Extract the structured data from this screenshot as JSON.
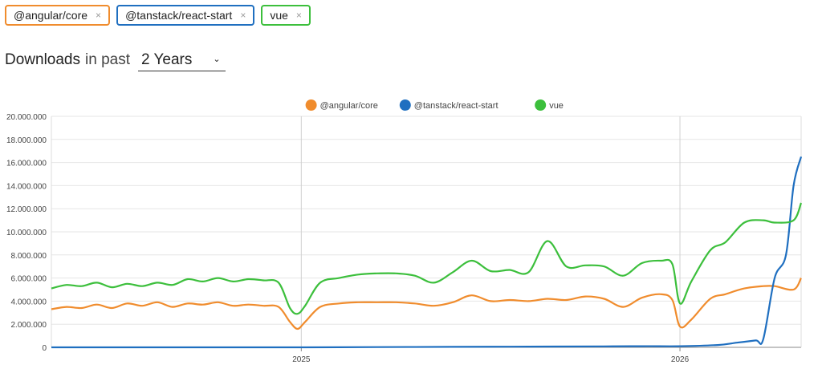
{
  "chips": [
    {
      "label": "@angular/core",
      "color": "#f08c2d"
    },
    {
      "label": "@tanstack/react-start",
      "color": "#1f6fc0"
    },
    {
      "label": "vue",
      "color": "#3cbf3c"
    }
  ],
  "remove_glyph": "×",
  "header": {
    "title": "Downloads",
    "in_text": "in past",
    "period_value": "2 Years",
    "period_chevron": "⌄"
  },
  "chart_data": {
    "type": "line",
    "xlim": [
      2024.34,
      2026.32
    ],
    "ylim": [
      0,
      20000000
    ],
    "y_ticks": [
      0,
      2000000,
      4000000,
      6000000,
      8000000,
      10000000,
      12000000,
      14000000,
      16000000,
      18000000,
      20000000
    ],
    "y_tick_labels": [
      "0",
      "2.000.000",
      "4.000.000",
      "6.000.000",
      "8.000.000",
      "10.000.000",
      "12.000.000",
      "14.000.000",
      "16.000.000",
      "18.000.000",
      "20.000.000"
    ],
    "x_ticks": [
      2025,
      2026
    ],
    "x_tick_labels": [
      "2025",
      "2026"
    ],
    "grid": true,
    "legend_position": "top-center",
    "series": [
      {
        "name": "@angular/core",
        "color": "#f08c2d",
        "x": [
          2024.34,
          2024.38,
          2024.42,
          2024.46,
          2024.5,
          2024.54,
          2024.58,
          2024.62,
          2024.66,
          2024.7,
          2024.74,
          2024.78,
          2024.82,
          2024.86,
          2024.9,
          2024.94,
          2024.97,
          2024.99,
          2025.01,
          2025.05,
          2025.1,
          2025.15,
          2025.2,
          2025.25,
          2025.3,
          2025.35,
          2025.4,
          2025.45,
          2025.5,
          2025.55,
          2025.6,
          2025.65,
          2025.7,
          2025.75,
          2025.8,
          2025.85,
          2025.9,
          2025.95,
          2025.98,
          2026.0,
          2026.03,
          2026.08,
          2026.12,
          2026.17,
          2026.22,
          2026.25,
          2026.3,
          2026.32
        ],
        "y": [
          3300000,
          3500000,
          3400000,
          3700000,
          3400000,
          3800000,
          3600000,
          3900000,
          3500000,
          3800000,
          3700000,
          3900000,
          3600000,
          3700000,
          3600000,
          3500000,
          2200000,
          1600000,
          2200000,
          3500000,
          3800000,
          3900000,
          3900000,
          3900000,
          3800000,
          3600000,
          3900000,
          4500000,
          4000000,
          4100000,
          4000000,
          4200000,
          4100000,
          4400000,
          4200000,
          3500000,
          4300000,
          4600000,
          4100000,
          1800000,
          2400000,
          4200000,
          4600000,
          5100000,
          5300000,
          5300000,
          5000000,
          6000000
        ]
      },
      {
        "name": "@tanstack/react-start",
        "color": "#1f6fc0",
        "x": [
          2024.34,
          2024.6,
          2024.8,
          2025.0,
          2025.2,
          2025.4,
          2025.6,
          2025.8,
          2025.9,
          2026.0,
          2026.1,
          2026.15,
          2026.2,
          2026.22,
          2026.25,
          2026.28,
          2026.3,
          2026.32
        ],
        "y": [
          0,
          0,
          0,
          0,
          20000,
          40000,
          60000,
          80000,
          100000,
          100000,
          200000,
          400000,
          600000,
          700000,
          6000000,
          8000000,
          14000000,
          16500000
        ]
      },
      {
        "name": "vue",
        "color": "#3cbf3c",
        "x": [
          2024.34,
          2024.38,
          2024.42,
          2024.46,
          2024.5,
          2024.54,
          2024.58,
          2024.62,
          2024.66,
          2024.7,
          2024.74,
          2024.78,
          2024.82,
          2024.86,
          2024.9,
          2024.94,
          2024.97,
          2024.99,
          2025.01,
          2025.05,
          2025.1,
          2025.15,
          2025.2,
          2025.25,
          2025.3,
          2025.35,
          2025.4,
          2025.45,
          2025.5,
          2025.55,
          2025.6,
          2025.65,
          2025.7,
          2025.75,
          2025.8,
          2025.85,
          2025.9,
          2025.95,
          2025.98,
          2026.0,
          2026.03,
          2026.08,
          2026.12,
          2026.17,
          2026.22,
          2026.25,
          2026.3,
          2026.32
        ],
        "y": [
          5100000,
          5400000,
          5300000,
          5600000,
          5200000,
          5500000,
          5300000,
          5600000,
          5400000,
          5900000,
          5700000,
          6000000,
          5700000,
          5900000,
          5800000,
          5600000,
          3400000,
          2900000,
          3600000,
          5600000,
          6000000,
          6300000,
          6400000,
          6400000,
          6200000,
          5600000,
          6500000,
          7500000,
          6600000,
          6700000,
          6500000,
          9200000,
          7000000,
          7100000,
          7000000,
          6200000,
          7300000,
          7500000,
          7200000,
          3800000,
          5700000,
          8400000,
          9100000,
          10800000,
          11000000,
          10800000,
          11000000,
          12500000
        ]
      }
    ]
  }
}
